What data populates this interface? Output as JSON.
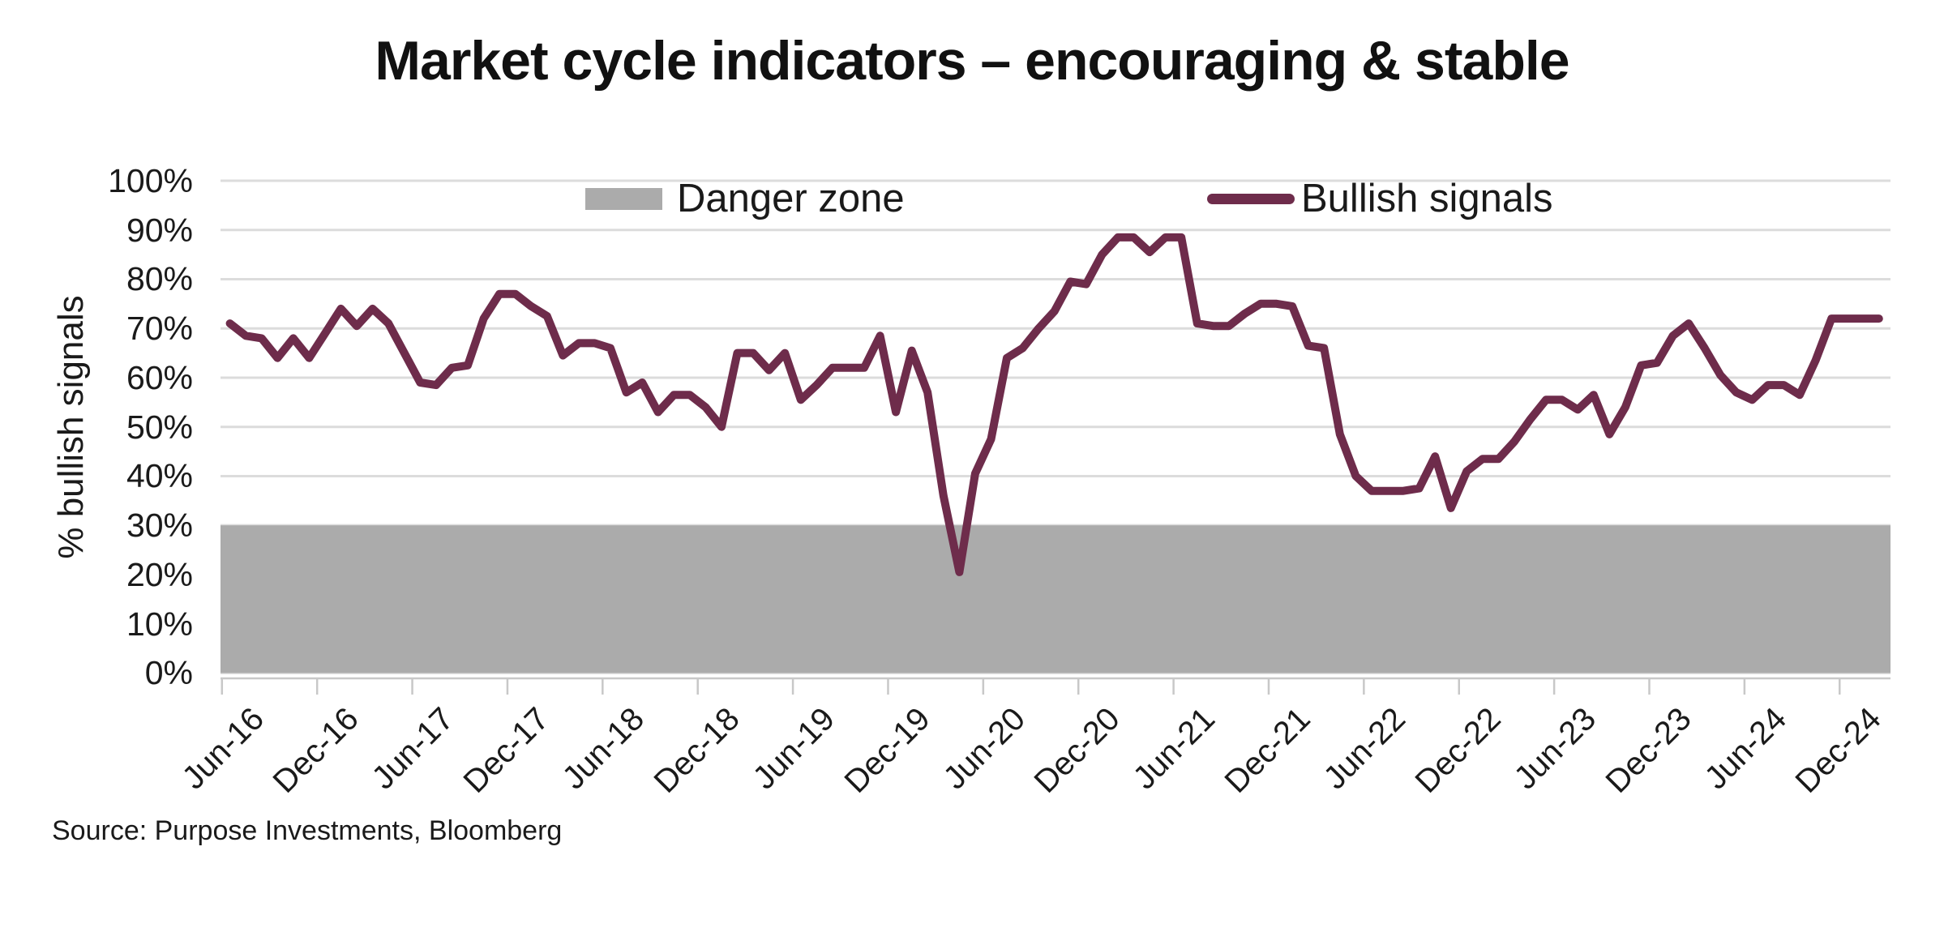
{
  "page": {
    "title": "Market cycle indicators – encouraging & stable"
  },
  "legend": {
    "danger_label": "Danger zone",
    "bullish_label": "Bullish signals"
  },
  "y_axis": {
    "title": "% bullish signals",
    "tick_labels": [
      "100%",
      "90%",
      "80%",
      "70%",
      "60%",
      "50%",
      "40%",
      "30%",
      "20%",
      "10%",
      "0%"
    ]
  },
  "x_axis": {
    "tick_labels": [
      "Jun-16",
      "Dec-16",
      "Jun-17",
      "Dec-17",
      "Jun-18",
      "Dec-18",
      "Jun-19",
      "Dec-19",
      "Jun-20",
      "Dec-20",
      "Jun-21",
      "Dec-21",
      "Jun-22",
      "Dec-22",
      "Jun-23",
      "Dec-23",
      "Jun-24",
      "Dec-24"
    ]
  },
  "source": "Source: Purpose Investments, Bloomberg",
  "colors": {
    "line": "#6E2C4B",
    "danger_zone": "#ABABAB",
    "gridline": "#DCDCDC",
    "axis": "#C8C8C8",
    "text": "#1A1A1A"
  },
  "chart_data": {
    "type": "line",
    "title": "Market cycle indicators – encouraging & stable",
    "xlabel": "",
    "ylabel": "% bullish signals",
    "ylim": [
      0,
      100
    ],
    "y_ticks_pct": [
      0,
      10,
      20,
      30,
      40,
      50,
      60,
      70,
      80,
      90,
      100
    ],
    "x_tick_labels": [
      "Jun-16",
      "Dec-16",
      "Jun-17",
      "Dec-17",
      "Jun-18",
      "Dec-18",
      "Jun-19",
      "Dec-19",
      "Jun-20",
      "Dec-20",
      "Jun-21",
      "Dec-21",
      "Jun-22",
      "Dec-22",
      "Jun-23",
      "Dec-23",
      "Jun-24",
      "Dec-24"
    ],
    "danger_zone_pct": [
      0,
      30
    ],
    "grid": "horizontal",
    "legend_position": "top-inside",
    "series": [
      {
        "name": "Bullish signals",
        "start": "Jun-2016",
        "frequency": "monthly",
        "values": [
          71,
          68.5,
          68,
          64,
          68,
          64,
          69,
          74,
          70.5,
          74,
          71,
          65,
          59,
          58.5,
          62,
          62.5,
          72,
          77,
          77,
          74.5,
          72.5,
          64.5,
          67,
          67,
          66,
          57,
          59,
          53,
          56.5,
          56.5,
          54,
          50,
          65,
          65,
          61.5,
          65,
          55.5,
          58.5,
          62,
          62,
          62,
          68.5,
          53,
          65.5,
          57,
          36,
          20.5,
          40.5,
          47.5,
          64,
          66,
          70,
          73.5,
          79.5,
          79,
          85,
          88.5,
          88.5,
          85.5,
          88.5,
          88.5,
          71,
          70.5,
          70.5,
          73,
          75,
          75,
          74.5,
          66.5,
          66,
          48.5,
          40,
          37,
          37,
          37,
          37.5,
          44,
          33.5,
          41,
          43.5,
          43.5,
          47,
          51.5,
          55.5,
          55.5,
          53.5,
          56.5,
          48.5,
          54,
          62.5,
          63,
          68.5,
          71,
          66,
          60.5,
          57,
          55.5,
          58.5,
          58.5,
          56.5,
          63.5,
          72,
          72,
          72,
          72
        ]
      }
    ]
  }
}
